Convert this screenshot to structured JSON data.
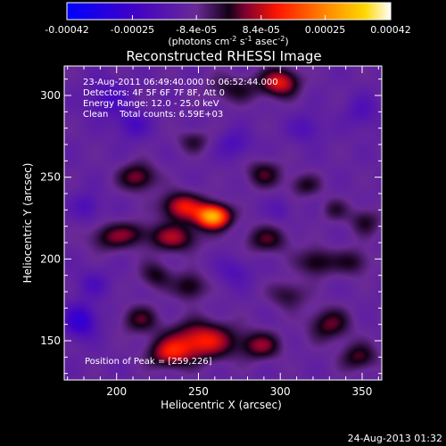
{
  "chart_data": {
    "type": "heatmap",
    "title": "Reconstructed RHESSI Image",
    "xlabel": "Heliocentric X (arcsec)",
    "ylabel": "Heliocentric Y (arcsec)",
    "xlim": [
      168,
      362
    ],
    "ylim": [
      126,
      318
    ],
    "x_ticks": [
      200,
      250,
      300,
      350
    ],
    "y_ticks": [
      150,
      200,
      250,
      300
    ],
    "colorbar": {
      "label_line1": "(photons cm",
      "label_line1_sup": "-2",
      "label_line1b": " s",
      "label_line1b_sup": "-1",
      "label_line1c": " asec",
      "label_line1c_sup": "-2",
      "label_line1_end": ")",
      "ticks": [
        "-0.00042",
        "-0.00025",
        "-8.4e-05",
        "8.4e-05",
        "0.00025",
        "0.00042"
      ],
      "tick_values": [
        -0.00042,
        -0.00025,
        -8.4e-05,
        8.4e-05,
        0.00025,
        0.00042
      ],
      "range": [
        -0.00042,
        0.00042
      ]
    },
    "annotations": {
      "line1": "23-Aug-2011 06:49:40.000 to 06:52:44.000",
      "line2": "Detectors: 4F 5F 6F 7F 8F, Att 0",
      "line3": "Energy Range: 12.0 - 25.0 keV",
      "line4": "Clean    Total counts: 6.59E+03",
      "peak": "Position of Peak = [259,226]"
    },
    "peak": {
      "x": 259,
      "y": 226
    },
    "sources": [
      {
        "x": 259,
        "y": 226,
        "sx": 7,
        "sy": 5,
        "a": 0.00042
      },
      {
        "x": 240,
        "y": 232,
        "sx": 9,
        "sy": 6,
        "a": 0.00022
      },
      {
        "x": 213,
        "y": 250,
        "sx": 8,
        "sy": 6,
        "a": 0.00016
      },
      {
        "x": 235,
        "y": 213,
        "sx": 11,
        "sy": 6,
        "a": 0.00017
      },
      {
        "x": 196,
        "y": 213,
        "sx": 10,
        "sy": 6,
        "a": 0.00012
      },
      {
        "x": 210,
        "y": 216,
        "sx": 8,
        "sy": 5,
        "a": 8e-05
      },
      {
        "x": 224,
        "y": 190,
        "sx": 7,
        "sy": 6,
        "a": 0.00011
      },
      {
        "x": 245,
        "y": 183,
        "sx": 7,
        "sy": 6,
        "a": 0.00013
      },
      {
        "x": 252,
        "y": 150,
        "sx": 14,
        "sy": 8,
        "a": 0.00024
      },
      {
        "x": 232,
        "y": 142,
        "sx": 9,
        "sy": 6,
        "a": 0.00018
      },
      {
        "x": 214,
        "y": 163,
        "sx": 8,
        "sy": 6,
        "a": 0.00012
      },
      {
        "x": 288,
        "y": 147,
        "sx": 9,
        "sy": 6,
        "a": 0.00015
      },
      {
        "x": 300,
        "y": 308,
        "sx": 8,
        "sy": 6,
        "a": 0.00022
      },
      {
        "x": 272,
        "y": 304,
        "sx": 12,
        "sy": 6,
        "a": 0.0001
      },
      {
        "x": 247,
        "y": 272,
        "sx": 7,
        "sy": 5,
        "a": 9e-05
      },
      {
        "x": 290,
        "y": 252,
        "sx": 8,
        "sy": 6,
        "a": 0.00012
      },
      {
        "x": 315,
        "y": 245,
        "sx": 7,
        "sy": 5,
        "a": 0.0001
      },
      {
        "x": 292,
        "y": 212,
        "sx": 10,
        "sy": 6,
        "a": 0.00012
      },
      {
        "x": 322,
        "y": 198,
        "sx": 8,
        "sy": 6,
        "a": 0.00013
      },
      {
        "x": 345,
        "y": 198,
        "sx": 8,
        "sy": 6,
        "a": 0.0001
      },
      {
        "x": 352,
        "y": 223,
        "sx": 7,
        "sy": 6,
        "a": 0.0001
      },
      {
        "x": 333,
        "y": 230,
        "sx": 6,
        "sy": 5,
        "a": 8e-05
      },
      {
        "x": 305,
        "y": 178,
        "sx": 8,
        "sy": 6,
        "a": 0.0001
      },
      {
        "x": 330,
        "y": 160,
        "sx": 9,
        "sy": 7,
        "a": 0.00014
      },
      {
        "x": 348,
        "y": 140,
        "sx": 8,
        "sy": 6,
        "a": 0.00013
      },
      {
        "x": 178,
        "y": 162,
        "sx": 7,
        "sy": 7,
        "a": -0.00018
      },
      {
        "x": 195,
        "y": 298,
        "sx": 9,
        "sy": 8,
        "a": -0.0001
      },
      {
        "x": 210,
        "y": 282,
        "sx": 7,
        "sy": 6,
        "a": -0.0001
      },
      {
        "x": 272,
        "y": 270,
        "sx": 7,
        "sy": 6,
        "a": -9e-05
      },
      {
        "x": 316,
        "y": 280,
        "sx": 7,
        "sy": 6,
        "a": -8e-05
      },
      {
        "x": 182,
        "y": 232,
        "sx": 6,
        "sy": 6,
        "a": -9e-05
      },
      {
        "x": 272,
        "y": 192,
        "sx": 7,
        "sy": 6,
        "a": -8e-05
      },
      {
        "x": 350,
        "y": 290,
        "sx": 7,
        "sy": 7,
        "a": -8e-05
      },
      {
        "x": 186,
        "y": 185,
        "sx": 7,
        "sy": 6,
        "a": -8e-05
      },
      {
        "x": 300,
        "y": 230,
        "sx": 5,
        "sy": 5,
        "a": -6e-05
      }
    ],
    "background": -0.00011,
    "grid": false
  },
  "footer": {
    "timestamp": "24-Aug-2013 01:32"
  }
}
